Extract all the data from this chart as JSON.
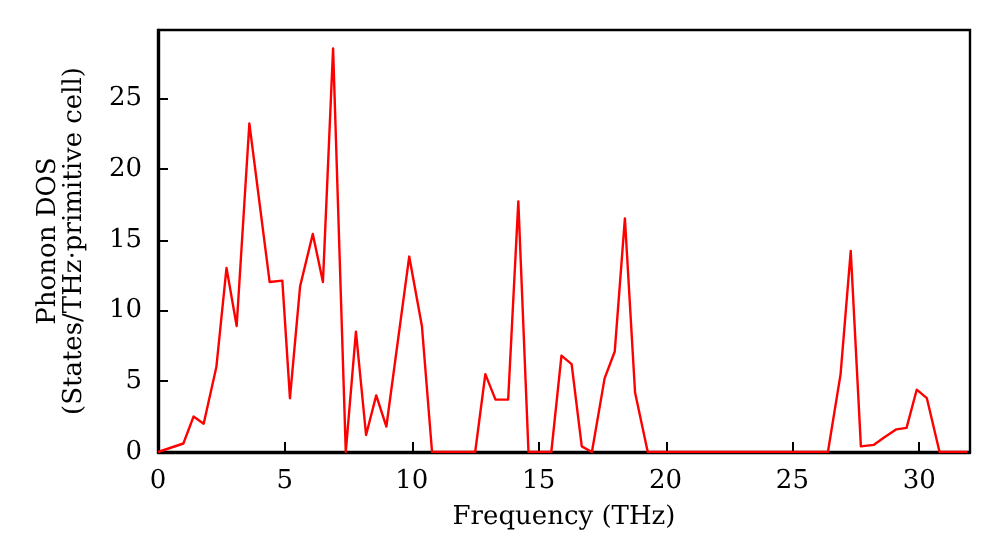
{
  "chart_data": {
    "type": "line",
    "xlabel": "Frequency (THz)",
    "ylabel": "Phonon DOS\n(States/THz·primitive cell)",
    "x": [
      0,
      0.5,
      1,
      1.4,
      1.8,
      2.3,
      2.7,
      3.1,
      3.6,
      4.4,
      4.9,
      5.2,
      5.6,
      6.1,
      6.5,
      6.9,
      7.4,
      7.8,
      8.2,
      8.6,
      9.0,
      9.9,
      10.4,
      10.8,
      12.5,
      12.9,
      13.3,
      13.8,
      14.2,
      14.6,
      15.5,
      15.9,
      16.3,
      16.7,
      17.1,
      17.6,
      18.0,
      18.4,
      18.8,
      19.3,
      26.4,
      26.9,
      27.3,
      27.7,
      28.2,
      28.6,
      29.1,
      29.5,
      29.9,
      30.3,
      30.8,
      31.9
    ],
    "series": [
      {
        "color": "#ff0000",
        "values": [
          0,
          0.3,
          0.6,
          2.5,
          2.0,
          6,
          13,
          8.9,
          23.2,
          12,
          12.1,
          3.8,
          11.7,
          15.4,
          12,
          28.5,
          0,
          8.5,
          1.2,
          4,
          1.8,
          13.8,
          8.9,
          0,
          0,
          5.5,
          3.7,
          3.7,
          17.7,
          0,
          0,
          6.8,
          6.2,
          0.4,
          0,
          5.2,
          7.1,
          16.5,
          4.2,
          0,
          0,
          5.5,
          14.2,
          0.4,
          0.5,
          1,
          1.6,
          1.7,
          4.4,
          3.8,
          0,
          0
        ]
      }
    ],
    "xlim": [
      0,
      32
    ],
    "ylim": [
      0,
      29.8
    ],
    "xticks": [
      0,
      5,
      10,
      15,
      20,
      25,
      30
    ],
    "yticks": [
      0,
      5,
      10,
      15,
      20,
      25
    ],
    "grid": false,
    "marker": "none",
    "line_style": "solid"
  }
}
